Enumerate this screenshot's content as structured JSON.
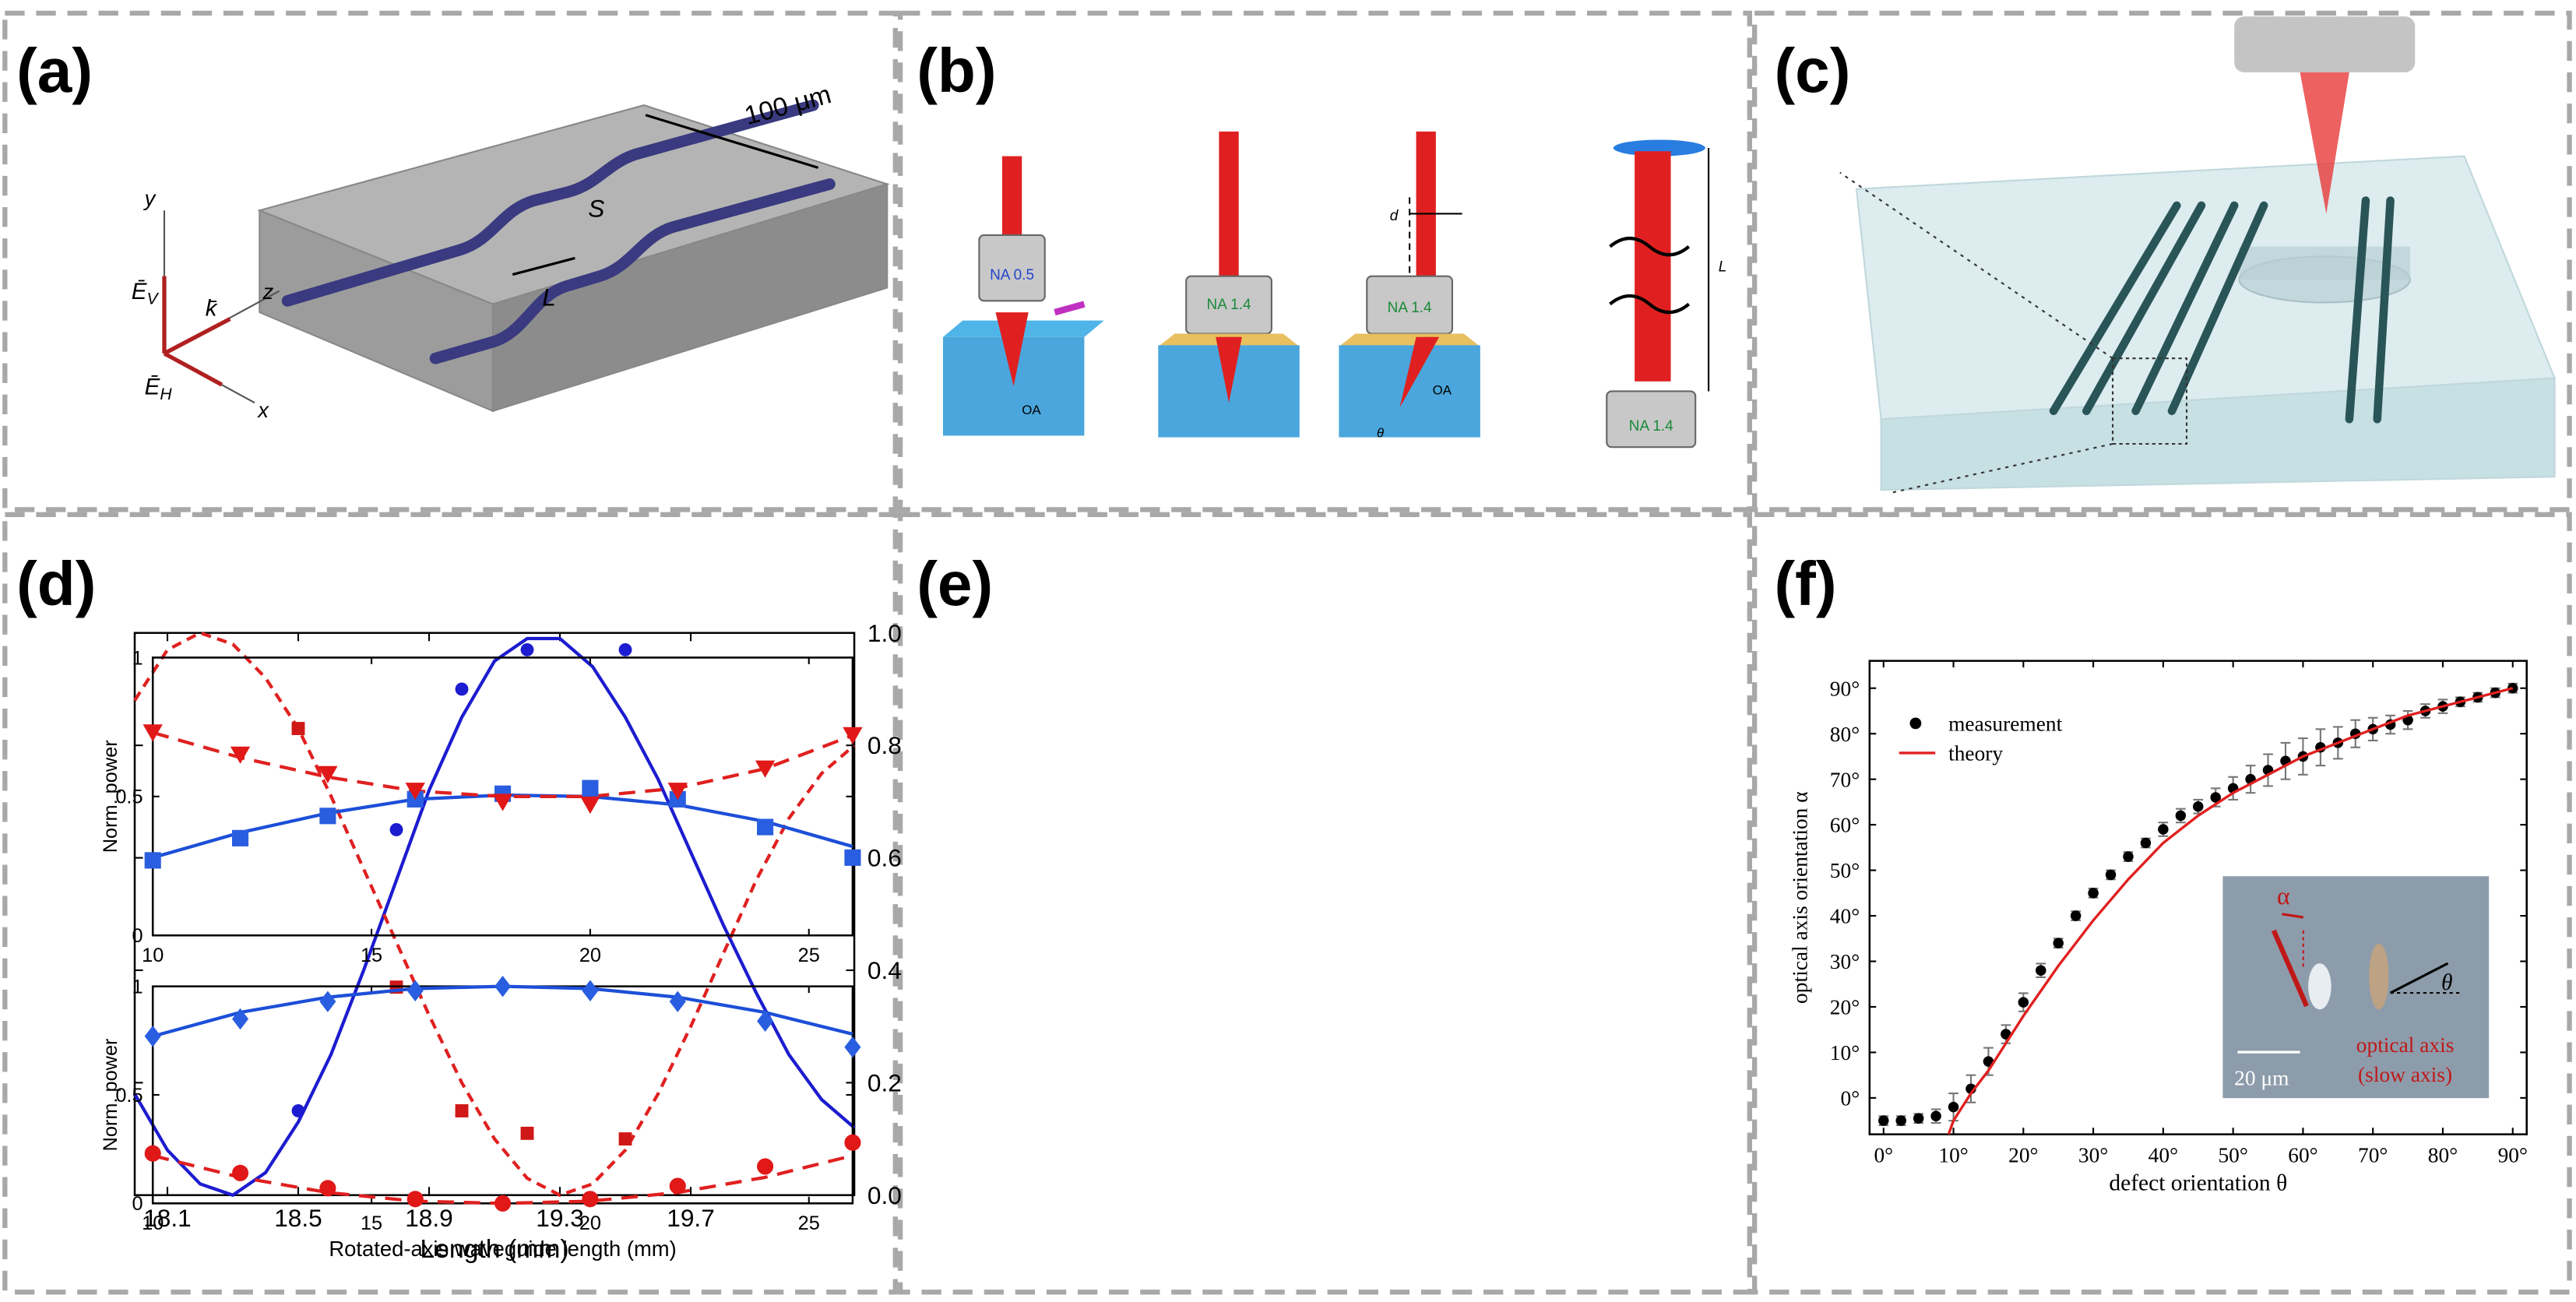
{
  "panel_labels": [
    "(a)",
    "(b)",
    "(c)",
    "(d)",
    "(e)",
    "(f)"
  ],
  "diagram_a": {
    "dimension": "100 μm",
    "gap": "S",
    "length": "L",
    "axes": [
      "y",
      "z",
      "x"
    ],
    "fields": [
      {
        "symbol": "Ē",
        "sub": "V"
      },
      "k̄",
      {
        "symbol": "Ē",
        "sub": "H"
      }
    ]
  },
  "diagram_b": {
    "objectives": [
      "NA 0.5",
      "NA 1.4",
      "NA 1.4",
      "NA 1.4"
    ],
    "optical_axis": [
      "OA",
      "OA"
    ],
    "offset": "d",
    "angle": "θ",
    "length": "L"
  },
  "chart_data": [
    {
      "type": "line",
      "xlabel": "Length (mm)",
      "xlim": [
        18.0,
        20.2
      ],
      "xticks": [
        18.1,
        18.5,
        18.9,
        19.3,
        19.7
      ],
      "ylim": [
        0,
        1
      ],
      "yticks": [
        {
          "value": 0,
          "label": "0.0"
        },
        0.2,
        0.4,
        0.6,
        0.8,
        {
          "value": 1,
          "label": "1.0"
        }
      ],
      "y_axis_side": "right",
      "series": [
        {
          "color": "#1c1cd0",
          "line": "solid",
          "x": [
            18.0,
            18.1,
            18.2,
            18.3,
            18.4,
            18.5,
            18.6,
            18.7,
            18.8,
            18.9,
            19.0,
            19.1,
            19.2,
            19.3,
            19.4,
            19.5,
            19.6,
            19.7,
            19.8,
            19.9,
            20.0,
            20.1,
            20.2
          ],
          "values": [
            0.18,
            0.08,
            0.02,
            0.0,
            0.04,
            0.13,
            0.25,
            0.4,
            0.56,
            0.72,
            0.85,
            0.95,
            0.99,
            0.99,
            0.94,
            0.85,
            0.74,
            0.61,
            0.48,
            0.36,
            0.25,
            0.17,
            0.12
          ]
        },
        {
          "color": "#e02020",
          "line": "dashed",
          "x": [
            18.0,
            18.1,
            18.2,
            18.3,
            18.4,
            18.5,
            18.6,
            18.7,
            18.8,
            18.9,
            19.0,
            19.1,
            19.2,
            19.3,
            19.4,
            19.5,
            19.6,
            19.7,
            19.8,
            19.9,
            20.0,
            20.1,
            20.2
          ],
          "values": [
            0.88,
            0.97,
            1.0,
            0.98,
            0.92,
            0.83,
            0.71,
            0.58,
            0.45,
            0.32,
            0.2,
            0.1,
            0.03,
            0.0,
            0.02,
            0.08,
            0.18,
            0.3,
            0.43,
            0.56,
            0.67,
            0.75,
            0.8
          ]
        },
        {
          "color": "#1c1cd0",
          "marker": "circle",
          "x": [
            18.5,
            18.8,
            19.0,
            19.2,
            19.5
          ],
          "values": [
            0.15,
            0.65,
            0.9,
            0.97,
            0.97
          ]
        },
        {
          "color": "#d01818",
          "marker": "square",
          "x": [
            18.5,
            18.8,
            19.0,
            19.2,
            19.5
          ],
          "values": [
            0.83,
            0.37,
            0.15,
            0.11,
            0.1
          ]
        }
      ]
    },
    {
      "type": "line",
      "ylabel": "Norm. power",
      "xlim": [
        10,
        26
      ],
      "xticks": [
        10,
        15,
        20,
        25
      ],
      "ylim": [
        0,
        1
      ],
      "yticks": [
        0,
        0.5,
        1
      ],
      "series": [
        {
          "color": "#1c4fd8",
          "line": "solid",
          "x": [
            10,
            12,
            14,
            16,
            18,
            20,
            22,
            24,
            26
          ],
          "values": [
            0.28,
            0.37,
            0.44,
            0.49,
            0.505,
            0.5,
            0.47,
            0.41,
            0.32
          ]
        },
        {
          "color": "#e02020",
          "line": "dashed",
          "x": [
            10,
            12,
            14,
            16,
            18,
            20,
            22,
            24,
            26
          ],
          "values": [
            0.73,
            0.64,
            0.57,
            0.52,
            0.5,
            0.5,
            0.53,
            0.6,
            0.72
          ]
        },
        {
          "color": "#2a5ee0",
          "marker": "square",
          "x": [
            10,
            12,
            14,
            16,
            18,
            20,
            22,
            24,
            26
          ],
          "values": [
            0.27,
            0.35,
            0.43,
            0.49,
            0.51,
            0.53,
            0.49,
            0.39,
            0.28
          ]
        },
        {
          "color": "#e01818",
          "marker": "triangle-down",
          "x": [
            10,
            12,
            14,
            16,
            18,
            20,
            22,
            24,
            26
          ],
          "values": [
            0.73,
            0.65,
            0.58,
            0.52,
            0.48,
            0.47,
            0.52,
            0.6,
            0.72
          ]
        }
      ]
    },
    {
      "type": "line",
      "xlabel": "Rotated-axis waveguide length (mm)",
      "ylabel": "Norm. power",
      "xlim": [
        10,
        26
      ],
      "xticks": [
        10,
        15,
        20,
        25
      ],
      "ylim": [
        0,
        1
      ],
      "yticks": [
        0,
        0.5,
        1
      ],
      "series": [
        {
          "color": "#1c4fd8",
          "line": "solid",
          "x": [
            10,
            12,
            14,
            16,
            18,
            20,
            22,
            24,
            26
          ],
          "values": [
            0.77,
            0.88,
            0.95,
            0.99,
            1.0,
            0.99,
            0.95,
            0.88,
            0.78
          ]
        },
        {
          "color": "#e02020",
          "line": "dashed",
          "x": [
            10,
            12,
            14,
            16,
            18,
            20,
            22,
            24,
            26
          ],
          "values": [
            0.22,
            0.12,
            0.05,
            0.01,
            0.0,
            0.01,
            0.05,
            0.12,
            0.22
          ]
        },
        {
          "color": "#2a5ee0",
          "marker": "diamond",
          "x": [
            10,
            12,
            14,
            16,
            18,
            20,
            22,
            24,
            26
          ],
          "values": [
            0.77,
            0.85,
            0.93,
            0.98,
            1.0,
            0.98,
            0.93,
            0.84,
            0.72
          ]
        },
        {
          "color": "#e01818",
          "marker": "circle",
          "x": [
            10,
            12,
            14,
            16,
            18,
            20,
            22,
            24,
            26
          ],
          "values": [
            0.23,
            0.14,
            0.07,
            0.02,
            0.0,
            0.02,
            0.08,
            0.17,
            0.28
          ]
        }
      ]
    },
    {
      "type": "scatter",
      "xlabel": "defect orientation θ",
      "ylabel": "optical axis orientation α",
      "legend": "upper left",
      "xlim": [
        -2,
        92
      ],
      "xticks": [
        {
          "value": 0,
          "label": "0°"
        },
        {
          "value": 10,
          "label": "10°"
        },
        {
          "value": 20,
          "label": "20°"
        },
        {
          "value": 30,
          "label": "30°"
        },
        {
          "value": 40,
          "label": "40°"
        },
        {
          "value": 50,
          "label": "50°"
        },
        {
          "value": 60,
          "label": "60°"
        },
        {
          "value": 70,
          "label": "70°"
        },
        {
          "value": 80,
          "label": "80°"
        },
        {
          "value": 90,
          "label": "90°"
        }
      ],
      "ylim": [
        -8,
        96
      ],
      "yticks": [
        {
          "value": 0,
          "label": "0°"
        },
        {
          "value": 10,
          "label": "10°"
        },
        {
          "value": 20,
          "label": "20°"
        },
        {
          "value": 30,
          "label": "30°"
        },
        {
          "value": 40,
          "label": "40°"
        },
        {
          "value": 50,
          "label": "50°"
        },
        {
          "value": 60,
          "label": "60°"
        },
        {
          "value": 70,
          "label": "70°"
        },
        {
          "value": 80,
          "label": "80°"
        },
        {
          "value": 90,
          "label": "90°"
        }
      ],
      "series": [
        {
          "name": "measurement",
          "color": "#000000",
          "marker": "circle",
          "x": [
            0,
            2.5,
            5,
            7.5,
            10,
            12.5,
            15,
            17.5,
            20,
            22.5,
            25,
            27.5,
            30,
            32.5,
            35,
            37.5,
            40,
            42.5,
            45,
            47.5,
            50,
            52.5,
            55,
            57.5,
            60,
            62.5,
            65,
            67.5,
            70,
            72.5,
            75,
            77.5,
            80,
            82.5,
            85,
            87.5,
            90
          ],
          "values": [
            -5,
            -5,
            -4.5,
            -4,
            -2,
            2,
            8,
            14,
            21,
            28,
            34,
            40,
            45,
            49,
            53,
            56,
            59,
            62,
            64,
            66,
            68,
            70,
            72,
            74,
            75,
            77,
            78,
            80,
            81,
            82,
            83,
            85,
            86,
            87,
            88,
            89,
            90
          ],
          "errors": [
            1,
            1,
            1,
            1.5,
            3,
            3,
            3,
            2,
            2,
            1.5,
            1,
            1,
            1,
            1,
            1,
            1,
            1.5,
            1.5,
            1.5,
            2,
            2.5,
            3,
            3.5,
            4,
            4,
            4,
            3.5,
            3,
            2.5,
            2,
            2,
            1.5,
            1.5,
            1,
            1,
            1,
            1
          ]
        },
        {
          "name": "theory",
          "color": "#e02020",
          "line": "solid",
          "x": [
            9.3,
            10,
            12.5,
            15,
            17.5,
            20,
            25,
            30,
            35,
            40,
            45,
            50,
            55,
            60,
            65,
            70,
            75,
            80,
            85,
            90
          ],
          "values": [
            -8,
            -5,
            1,
            6,
            12,
            18,
            29,
            39,
            48,
            56,
            62,
            67,
            71,
            75,
            78,
            81,
            84,
            86,
            88,
            90
          ]
        }
      ],
      "annotations": [
        "α",
        "θ",
        "20 μm",
        "optical axis",
        "(slow axis)"
      ]
    }
  ]
}
